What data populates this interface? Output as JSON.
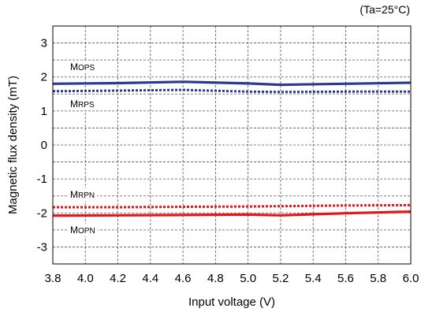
{
  "chart_data": {
    "type": "line",
    "title": "",
    "condition_note": "(Ta=25°C)",
    "xlabel": "Input voltage (V)",
    "ylabel": "Magnetic flux density (mT)",
    "xlim": [
      3.8,
      6.0
    ],
    "ylim": [
      -3.5,
      3.5
    ],
    "x_ticks": [
      3.8,
      4.0,
      4.2,
      4.4,
      4.6,
      4.8,
      5.0,
      5.2,
      5.4,
      5.6,
      5.8,
      6.0
    ],
    "x_tick_labels": [
      "3.8",
      "4.0",
      "4.2",
      "4.4",
      "4.6",
      "4.8",
      "5.0",
      "5.2",
      "5.4",
      "5.6",
      "5.8",
      "6.0"
    ],
    "y_ticks": [
      3,
      2,
      1,
      0,
      -1,
      -2,
      -3
    ],
    "y_tick_labels": [
      "3",
      "2",
      "1",
      "0",
      "-1",
      "-2",
      "-3"
    ],
    "grid": true,
    "legend": "none",
    "series": [
      {
        "name": "MOPS",
        "label_parts": [
          "M",
          "OPS"
        ],
        "color": "#2b3a8f",
        "style": "solid",
        "x": [
          3.8,
          4.2,
          4.6,
          5.0,
          5.2,
          5.6,
          6.0
        ],
        "y": [
          1.8,
          1.82,
          1.86,
          1.81,
          1.77,
          1.8,
          1.83
        ]
      },
      {
        "name": "MRPS",
        "label_parts": [
          "M",
          "RPS"
        ],
        "color": "#2b3a8f",
        "style": "dotted",
        "x": [
          3.8,
          4.2,
          4.6,
          5.0,
          5.2,
          5.6,
          6.0
        ],
        "y": [
          1.58,
          1.6,
          1.62,
          1.57,
          1.56,
          1.57,
          1.57
        ]
      },
      {
        "name": "MRPN",
        "label_parts": [
          "M",
          "RPN"
        ],
        "color": "#e8141c",
        "style": "dotted",
        "x": [
          3.8,
          4.2,
          4.6,
          5.0,
          5.2,
          5.6,
          6.0
        ],
        "y": [
          -1.83,
          -1.83,
          -1.82,
          -1.81,
          -1.8,
          -1.78,
          -1.77
        ]
      },
      {
        "name": "MOPN",
        "label_parts": [
          "M",
          "OPN"
        ],
        "color": "#e8141c",
        "style": "solid",
        "x": [
          3.8,
          4.2,
          4.6,
          5.0,
          5.2,
          5.6,
          6.0
        ],
        "y": [
          -2.08,
          -2.07,
          -2.06,
          -2.05,
          -2.07,
          -2.01,
          -1.96
        ]
      }
    ]
  }
}
